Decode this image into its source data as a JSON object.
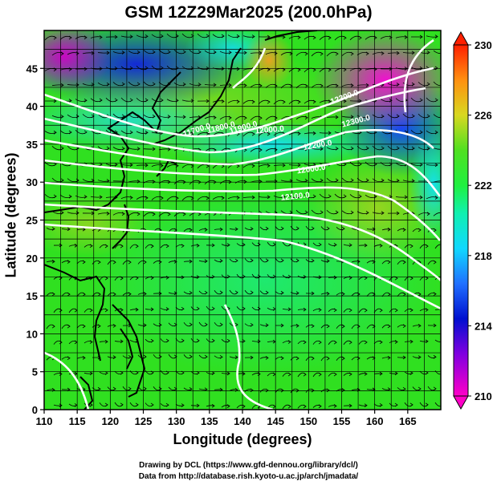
{
  "title": "GSM 12Z29Mar2025 (200.0hPa)",
  "xlabel": "Longitude (degrees)",
  "ylabel": "Latitude  (degrees)",
  "credit_line1": "Drawing by DCL (https://www.gfd-dennou.org/library/dcl/)",
  "credit_line2": "Data from http://database.rish.kyoto-u.ac.jp/arch/jmadata/",
  "chart_data": {
    "type": "heatmap",
    "description_fields": "Temperature shading at 200 hPa with geopotential height contours and wind streamlines",
    "xlim": [
      110,
      170
    ],
    "ylim": [
      0,
      50
    ],
    "x_ticks": [
      "110",
      "115",
      "120",
      "125",
      "130",
      "135",
      "140",
      "145",
      "150",
      "155",
      "160",
      "165"
    ],
    "y_ticks": [
      "0",
      "5",
      "10",
      "15",
      "20",
      "25",
      "30",
      "35",
      "40",
      "45"
    ],
    "colorbar": {
      "min": 210,
      "max": 230,
      "tick_labels": [
        "230",
        "226",
        "222",
        "218",
        "214",
        "210"
      ]
    },
    "contour_labels": [
      "11700.0",
      "11800.0",
      "11900.0",
      "12000.0",
      "12000.0",
      "12100.0",
      "12200.0",
      "12300.0",
      "12300.0"
    ],
    "colors": {
      "cold": "#e000c0",
      "cool": "#2040ff",
      "mid": "#10e8e0",
      "warm": "#30e020",
      "hot": "#e82010"
    }
  }
}
